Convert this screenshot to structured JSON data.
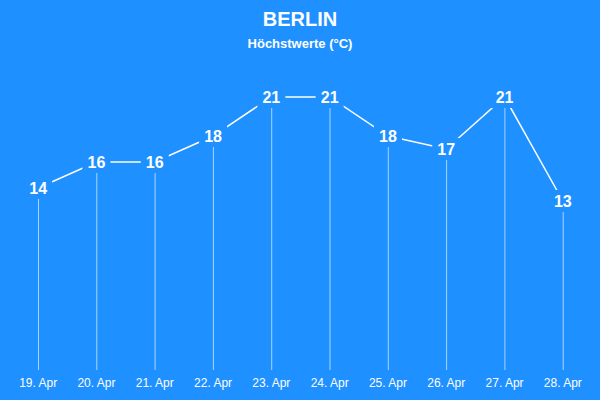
{
  "chart_data": {
    "type": "line",
    "title": "BERLIN",
    "subtitle": "Höchstwerte (°C)",
    "categories": [
      "19. Apr",
      "20. Apr",
      "21. Apr",
      "22. Apr",
      "23. Apr",
      "24. Apr",
      "25. Apr",
      "26. Apr",
      "27. Apr",
      "28. Apr"
    ],
    "values": [
      14,
      16,
      16,
      18,
      21,
      21,
      18,
      17,
      21,
      13
    ],
    "color": "#ffffff",
    "ylim": [
      0,
      24
    ],
    "grid": false,
    "data_labels": true,
    "tick_labels": "x"
  }
}
